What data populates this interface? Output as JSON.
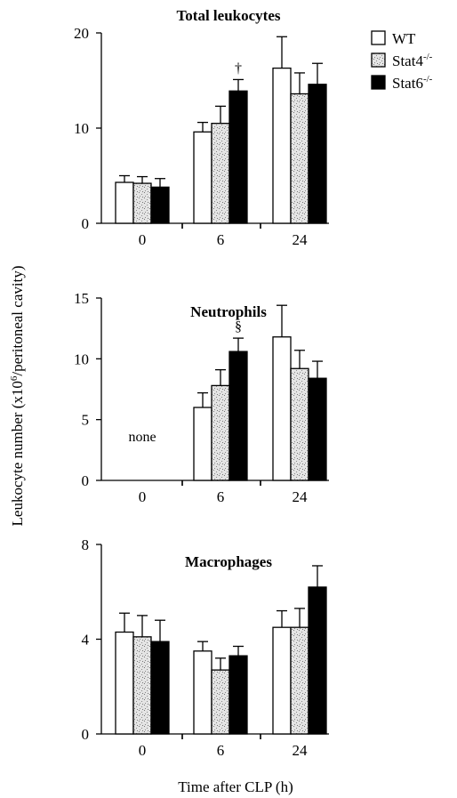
{
  "figure": {
    "ylabel": "Leukocyte number (x10",
    "ylabel_sup": "6",
    "ylabel_tail": "/peritoneal cavity)",
    "xlabel": "Time after CLP (h)"
  },
  "legend": [
    {
      "label": "WT",
      "sup": "",
      "pattern": "open"
    },
    {
      "label": "Stat4",
      "sup": "-/-",
      "pattern": "stippled"
    },
    {
      "label": "Stat6",
      "sup": "-/-",
      "pattern": "solid"
    }
  ],
  "colors": {
    "ink": "#000000",
    "open": "#ffffff",
    "stippled": "#e4e4e4",
    "solid": "#000000"
  },
  "chart_data": [
    {
      "type": "bar",
      "title": "Total leukocytes",
      "categories": [
        "0",
        "6",
        "24"
      ],
      "ylim": [
        0,
        20
      ],
      "yticks": [
        0,
        10,
        20
      ],
      "series": [
        {
          "name": "WT",
          "values": [
            4.3,
            9.6,
            16.3
          ],
          "errors": [
            0.7,
            1.0,
            3.3
          ]
        },
        {
          "name": "Stat4-/-",
          "values": [
            4.2,
            10.5,
            13.6
          ],
          "errors": [
            0.7,
            1.8,
            2.2
          ]
        },
        {
          "name": "Stat6-/-",
          "values": [
            3.8,
            13.9,
            14.6
          ],
          "errors": [
            0.9,
            1.2,
            2.2
          ]
        }
      ],
      "annotations": [
        {
          "category": "6",
          "series": "Stat6-/-",
          "text": "†"
        }
      ]
    },
    {
      "type": "bar",
      "title": "Neutrophils",
      "categories": [
        "0",
        "6",
        "24"
      ],
      "ylim": [
        0,
        15
      ],
      "yticks": [
        0,
        5,
        10,
        15
      ],
      "series": [
        {
          "name": "WT",
          "values": [
            0,
            6.0,
            11.8
          ],
          "errors": [
            0,
            1.2,
            2.6
          ]
        },
        {
          "name": "Stat4-/-",
          "values": [
            0,
            7.8,
            9.2
          ],
          "errors": [
            0,
            1.3,
            1.5
          ]
        },
        {
          "name": "Stat6-/-",
          "values": [
            0,
            10.6,
            8.4
          ],
          "errors": [
            0,
            1.1,
            1.4
          ]
        }
      ],
      "annotations": [
        {
          "category": "6",
          "series": "Stat6-/-",
          "text": "§"
        },
        {
          "category": "0",
          "series": "Stat4-/-",
          "text": "none"
        }
      ]
    },
    {
      "type": "bar",
      "title": "Macrophages",
      "categories": [
        "0",
        "6",
        "24"
      ],
      "ylim": [
        0,
        8
      ],
      "yticks": [
        0,
        4,
        8
      ],
      "series": [
        {
          "name": "WT",
          "values": [
            4.3,
            3.5,
            4.5
          ],
          "errors": [
            0.8,
            0.4,
            0.7
          ]
        },
        {
          "name": "Stat4-/-",
          "values": [
            4.1,
            2.7,
            4.5
          ],
          "errors": [
            0.9,
            0.5,
            0.8
          ]
        },
        {
          "name": "Stat6-/-",
          "values": [
            3.9,
            3.3,
            6.2
          ],
          "errors": [
            0.9,
            0.4,
            0.9
          ]
        }
      ],
      "annotations": []
    }
  ]
}
